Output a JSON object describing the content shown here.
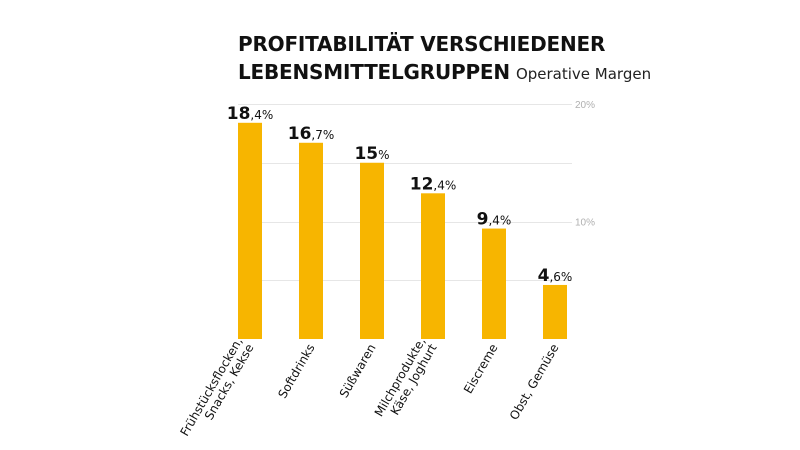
{
  "chart_data": {
    "type": "bar",
    "title_lines": [
      "PROFITABILITÄT VERSCHIEDENER",
      "LEBENSMITTELGRUPPEN"
    ],
    "subtitle": "Operative Margen",
    "categories": [
      [
        "Frühstücksflocken,",
        "Snacks, Kekse"
      ],
      [
        "Softdrinks"
      ],
      [
        "Süßwaren"
      ],
      [
        "Milchprodukte,",
        "Käse, Joghurt"
      ],
      [
        "Eiscreme"
      ],
      [
        "Obst, Gemüse"
      ]
    ],
    "values": [
      18.4,
      16.7,
      15,
      12.4,
      9.4,
      4.6
    ],
    "value_labels": [
      {
        "int": "18",
        "dec": ",4%"
      },
      {
        "int": "16",
        "dec": ",7%"
      },
      {
        "int": "15",
        "dec": "%"
      },
      {
        "int": "12",
        "dec": ",4%"
      },
      {
        "int": "9",
        "dec": ",4%"
      },
      {
        "int": "4",
        "dec": ",6%"
      }
    ],
    "ytick_labels": [
      "20%",
      "10%"
    ],
    "yticks": [
      20,
      10
    ],
    "ylim": [
      0,
      20
    ],
    "grid": true,
    "colors": {
      "bar": "#F7B500",
      "grid": "#e6e6e6",
      "tick": "#b0b0b0",
      "text": "#111111"
    }
  }
}
